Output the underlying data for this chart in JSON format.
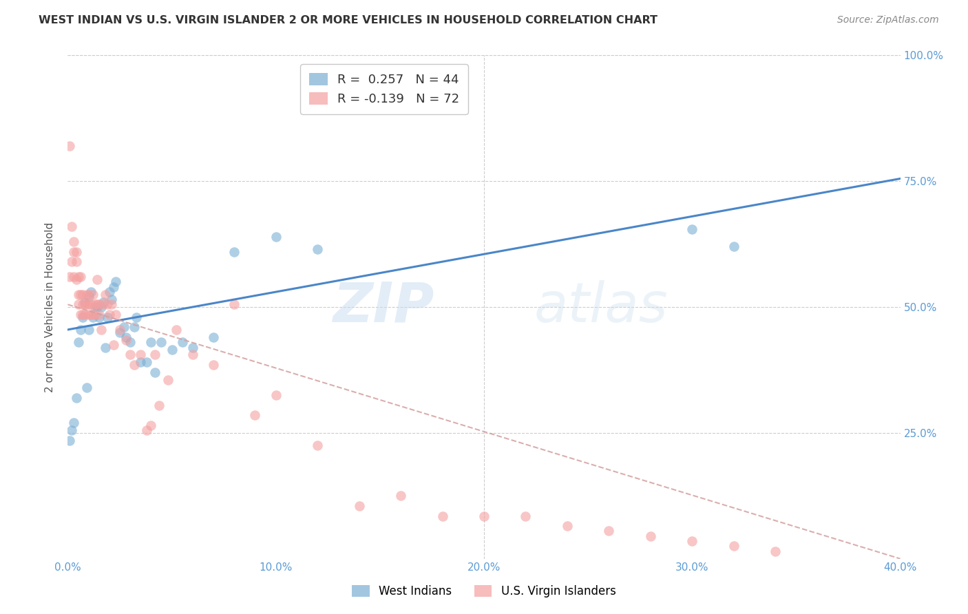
{
  "title": "WEST INDIAN VS U.S. VIRGIN ISLANDER 2 OR MORE VEHICLES IN HOUSEHOLD CORRELATION CHART",
  "source": "Source: ZipAtlas.com",
  "ylabel": "2 or more Vehicles in Household",
  "xlabel": "",
  "xlim": [
    0.0,
    0.4
  ],
  "ylim": [
    0.0,
    1.0
  ],
  "xticks": [
    0.0,
    0.1,
    0.2,
    0.3,
    0.4
  ],
  "yticks": [
    0.25,
    0.5,
    0.75,
    1.0
  ],
  "ytick_labels": [
    "25.0%",
    "50.0%",
    "75.0%",
    "100.0%"
  ],
  "xtick_labels": [
    "0.0%",
    "10.0%",
    "20.0%",
    "30.0%",
    "40.0%"
  ],
  "blue_color": "#7bafd4",
  "pink_color": "#f4a0a0",
  "blue_line_color": "#4a86c8",
  "pink_line_color": "#d4a0a0",
  "legend_blue_R": "R =  0.257",
  "legend_blue_N": "N = 44",
  "legend_pink_R": "R = -0.139",
  "legend_pink_N": "N = 72",
  "legend1": "West Indians",
  "legend2": "U.S. Virgin Islanders",
  "watermark_zip": "ZIP",
  "watermark_atlas": "atlas",
  "title_fontsize": 11.5,
  "axis_color": "#5b9bd5",
  "blue_points_x": [
    0.001,
    0.002,
    0.003,
    0.004,
    0.005,
    0.006,
    0.007,
    0.008,
    0.009,
    0.01,
    0.01,
    0.011,
    0.012,
    0.013,
    0.014,
    0.015,
    0.016,
    0.017,
    0.018,
    0.019,
    0.02,
    0.021,
    0.022,
    0.023,
    0.025,
    0.027,
    0.028,
    0.03,
    0.032,
    0.033,
    0.035,
    0.038,
    0.04,
    0.042,
    0.045,
    0.05,
    0.055,
    0.06,
    0.07,
    0.08,
    0.1,
    0.12,
    0.3,
    0.32
  ],
  "blue_points_y": [
    0.235,
    0.255,
    0.27,
    0.32,
    0.43,
    0.455,
    0.48,
    0.51,
    0.34,
    0.455,
    0.52,
    0.53,
    0.48,
    0.5,
    0.5,
    0.48,
    0.5,
    0.51,
    0.42,
    0.48,
    0.53,
    0.515,
    0.54,
    0.55,
    0.45,
    0.46,
    0.44,
    0.43,
    0.46,
    0.48,
    0.39,
    0.39,
    0.43,
    0.37,
    0.43,
    0.415,
    0.43,
    0.42,
    0.44,
    0.61,
    0.64,
    0.615,
    0.655,
    0.62
  ],
  "pink_points_x": [
    0.001,
    0.001,
    0.002,
    0.002,
    0.003,
    0.003,
    0.003,
    0.004,
    0.004,
    0.004,
    0.005,
    0.005,
    0.005,
    0.006,
    0.006,
    0.006,
    0.007,
    0.007,
    0.007,
    0.008,
    0.008,
    0.009,
    0.009,
    0.01,
    0.01,
    0.01,
    0.011,
    0.011,
    0.012,
    0.012,
    0.013,
    0.013,
    0.014,
    0.014,
    0.015,
    0.015,
    0.016,
    0.017,
    0.018,
    0.019,
    0.02,
    0.021,
    0.022,
    0.023,
    0.025,
    0.028,
    0.03,
    0.032,
    0.035,
    0.038,
    0.04,
    0.042,
    0.044,
    0.048,
    0.052,
    0.06,
    0.07,
    0.08,
    0.09,
    0.1,
    0.12,
    0.14,
    0.16,
    0.18,
    0.2,
    0.22,
    0.24,
    0.26,
    0.28,
    0.3,
    0.32,
    0.34
  ],
  "pink_points_y": [
    0.56,
    0.82,
    0.59,
    0.66,
    0.61,
    0.56,
    0.63,
    0.61,
    0.59,
    0.555,
    0.525,
    0.505,
    0.56,
    0.56,
    0.525,
    0.485,
    0.525,
    0.505,
    0.485,
    0.505,
    0.485,
    0.505,
    0.525,
    0.485,
    0.505,
    0.525,
    0.485,
    0.505,
    0.485,
    0.525,
    0.505,
    0.485,
    0.555,
    0.505,
    0.485,
    0.505,
    0.455,
    0.505,
    0.525,
    0.505,
    0.485,
    0.505,
    0.425,
    0.485,
    0.455,
    0.435,
    0.405,
    0.385,
    0.405,
    0.255,
    0.265,
    0.405,
    0.305,
    0.355,
    0.455,
    0.405,
    0.385,
    0.505,
    0.285,
    0.325,
    0.225,
    0.105,
    0.125,
    0.085,
    0.085,
    0.085,
    0.065,
    0.055,
    0.045,
    0.035,
    0.025,
    0.015
  ]
}
